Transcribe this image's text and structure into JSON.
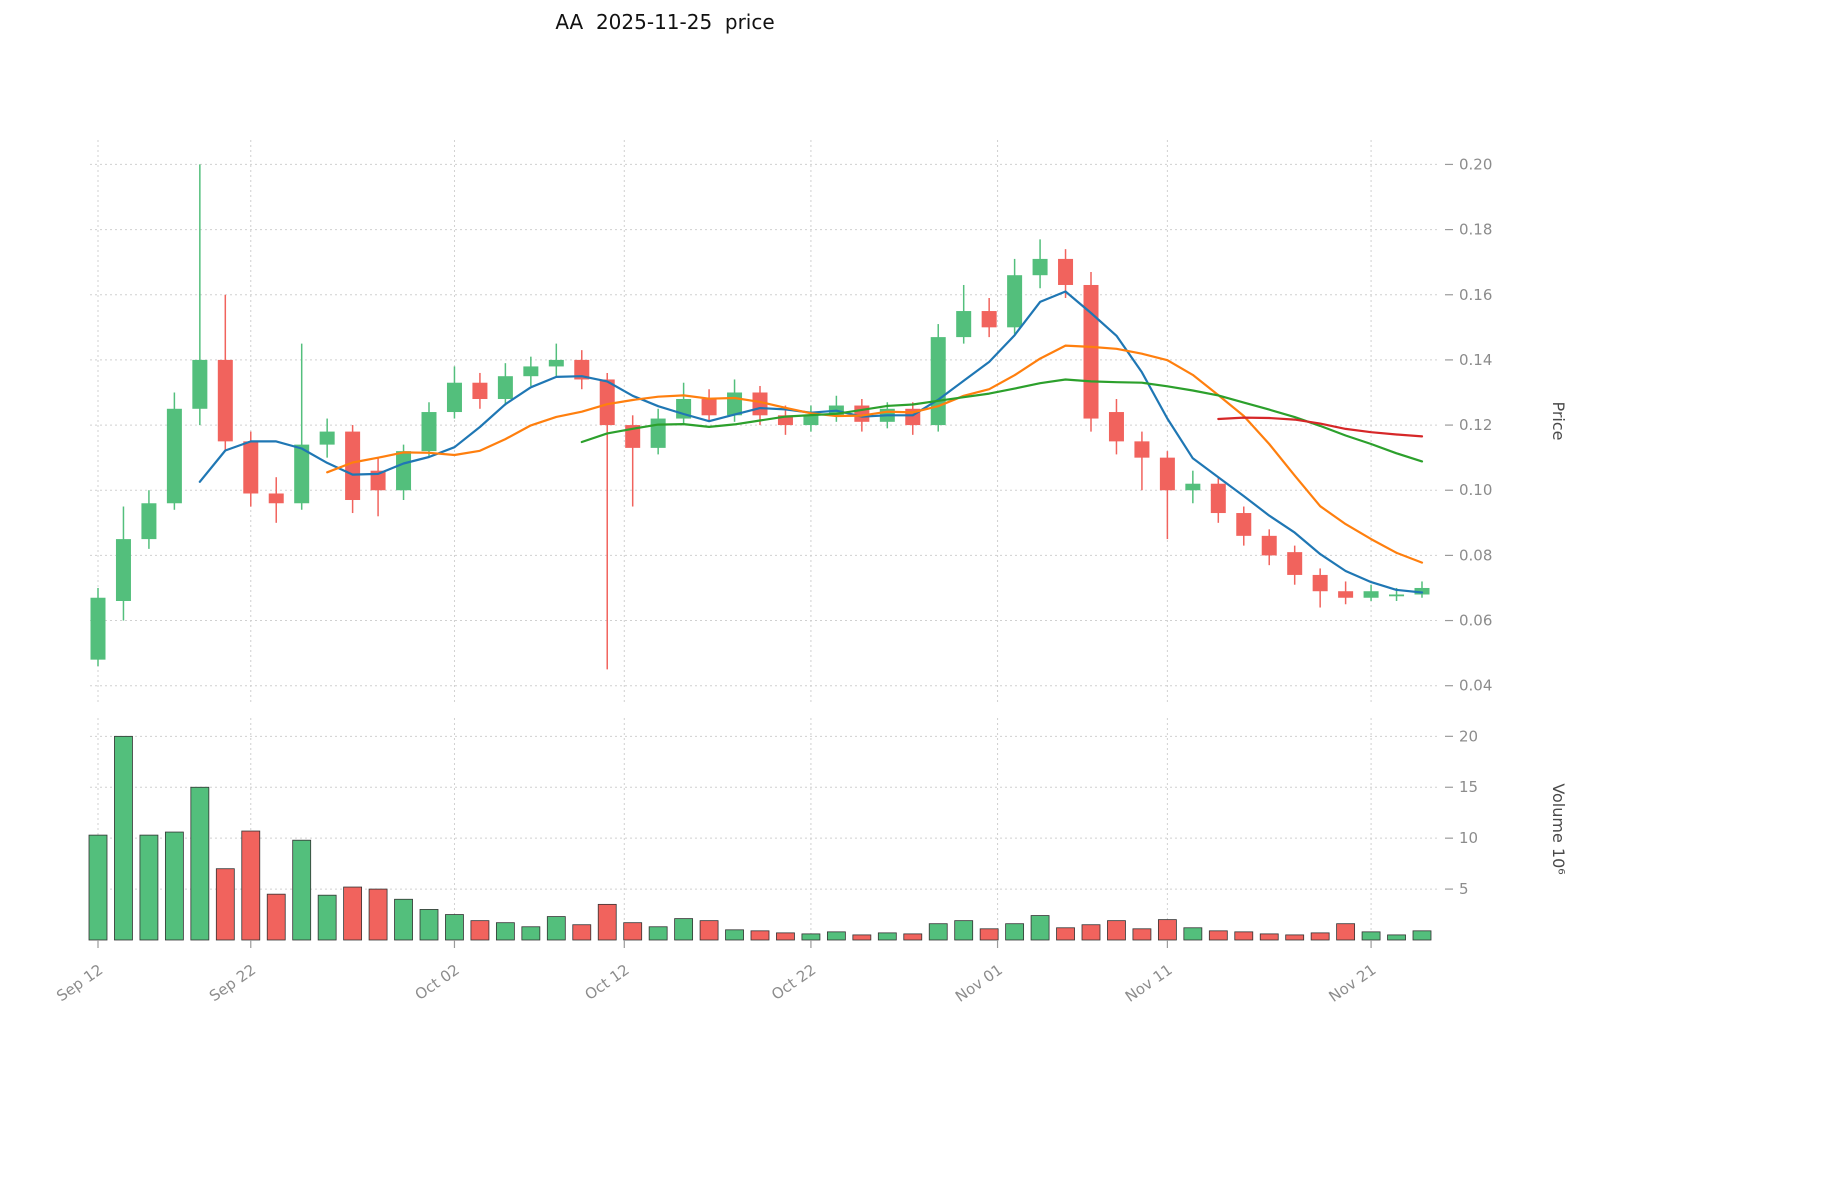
{
  "chart_data": {
    "type": "candlestick",
    "title": "AA  2025-11-25  price",
    "price_axis": {
      "label": "Price",
      "ticks": [
        0.04,
        0.06,
        0.08,
        0.1,
        0.12,
        0.14,
        0.16,
        0.18,
        0.2
      ],
      "range": [
        0.035,
        0.2075
      ]
    },
    "volume_axis": {
      "label": "Volume 10⁶",
      "ticks": [
        5,
        10,
        15,
        20
      ],
      "range": [
        0,
        21.8
      ]
    },
    "x_ticks": [
      {
        "label": "Sep 12",
        "index": 0
      },
      {
        "label": "Sep 22",
        "index": 6
      },
      {
        "label": "Oct 02",
        "index": 14
      },
      {
        "label": "Oct 12",
        "index": 20.67
      },
      {
        "label": "Oct 22",
        "index": 28
      },
      {
        "label": "Nov 01",
        "index": 35.33
      },
      {
        "label": "Nov 11",
        "index": 42
      },
      {
        "label": "Nov 21",
        "index": 50
      }
    ],
    "colors": {
      "up": "#53bf7c",
      "down": "#f1635d",
      "grid": "#d0d0d0",
      "tick_text": "#8c8c8c",
      "volume_edge": "#333333",
      "ma_fast": "#1f77b4",
      "ma_medium": "#ff7f0e",
      "ma_slow": "#2ca02c",
      "ma_long": "#d62728"
    },
    "moving_averages": [
      {
        "name": "ma-5",
        "period": 5,
        "color": "#1f77b4"
      },
      {
        "name": "ma-10",
        "period": 10,
        "color": "#ff7f0e"
      },
      {
        "name": "ma-20",
        "period": 20,
        "color": "#2ca02c"
      },
      {
        "name": "ma-45",
        "period": 45,
        "color": "#d62728"
      }
    ],
    "candles": [
      {
        "date": "Sep 12",
        "open": 0.048,
        "high": 0.07,
        "low": 0.046,
        "close": 0.067,
        "volume": 10.3
      },
      {
        "date": "Sep 15",
        "open": 0.066,
        "high": 0.095,
        "low": 0.06,
        "close": 0.085,
        "volume": 20.0
      },
      {
        "date": "Sep 16",
        "open": 0.085,
        "high": 0.1,
        "low": 0.082,
        "close": 0.096,
        "volume": 10.3
      },
      {
        "date": "Sep 17",
        "open": 0.096,
        "high": 0.13,
        "low": 0.094,
        "close": 0.125,
        "volume": 10.6
      },
      {
        "date": "Sep 18",
        "open": 0.125,
        "high": 0.2,
        "low": 0.12,
        "close": 0.14,
        "volume": 15.0
      },
      {
        "date": "Sep 19",
        "open": 0.14,
        "high": 0.16,
        "low": 0.112,
        "close": 0.115,
        "volume": 7.0
      },
      {
        "date": "Sep 22",
        "open": 0.115,
        "high": 0.118,
        "low": 0.095,
        "close": 0.099,
        "volume": 10.7
      },
      {
        "date": "Sep 23",
        "open": 0.099,
        "high": 0.104,
        "low": 0.09,
        "close": 0.096,
        "volume": 4.5
      },
      {
        "date": "Sep 24",
        "open": 0.096,
        "high": 0.145,
        "low": 0.094,
        "close": 0.114,
        "volume": 9.8
      },
      {
        "date": "Sep 25",
        "open": 0.114,
        "high": 0.122,
        "low": 0.11,
        "close": 0.118,
        "volume": 4.4
      },
      {
        "date": "Sep 26",
        "open": 0.118,
        "high": 0.12,
        "low": 0.093,
        "close": 0.097,
        "volume": 5.2
      },
      {
        "date": "Sep 29",
        "open": 0.106,
        "high": 0.11,
        "low": 0.092,
        "close": 0.1,
        "volume": 5.0
      },
      {
        "date": "Sep 30",
        "open": 0.1,
        "high": 0.114,
        "low": 0.097,
        "close": 0.112,
        "volume": 4.0
      },
      {
        "date": "Oct 01",
        "open": 0.112,
        "high": 0.127,
        "low": 0.11,
        "close": 0.124,
        "volume": 3.0
      },
      {
        "date": "Oct 02",
        "open": 0.124,
        "high": 0.138,
        "low": 0.122,
        "close": 0.133,
        "volume": 2.5
      },
      {
        "date": "Oct 03",
        "open": 0.133,
        "high": 0.136,
        "low": 0.125,
        "close": 0.128,
        "volume": 1.9
      },
      {
        "date": "Oct 06",
        "open": 0.128,
        "high": 0.139,
        "low": 0.126,
        "close": 0.135,
        "volume": 1.7
      },
      {
        "date": "Oct 07",
        "open": 0.135,
        "high": 0.141,
        "low": 0.132,
        "close": 0.138,
        "volume": 1.3
      },
      {
        "date": "Oct 08",
        "open": 0.138,
        "high": 0.145,
        "low": 0.135,
        "close": 0.14,
        "volume": 2.3
      },
      {
        "date": "Oct 09",
        "open": 0.14,
        "high": 0.143,
        "low": 0.131,
        "close": 0.134,
        "volume": 1.5
      },
      {
        "date": "Oct 10",
        "open": 0.134,
        "high": 0.136,
        "low": 0.045,
        "close": 0.12,
        "volume": 3.5
      },
      {
        "date": "Oct 13",
        "open": 0.12,
        "high": 0.123,
        "low": 0.095,
        "close": 0.113,
        "volume": 1.7
      },
      {
        "date": "Oct 14",
        "open": 0.113,
        "high": 0.125,
        "low": 0.111,
        "close": 0.122,
        "volume": 1.3
      },
      {
        "date": "Oct 15",
        "open": 0.122,
        "high": 0.133,
        "low": 0.12,
        "close": 0.128,
        "volume": 2.1
      },
      {
        "date": "Oct 16",
        "open": 0.128,
        "high": 0.131,
        "low": 0.121,
        "close": 0.123,
        "volume": 1.9
      },
      {
        "date": "Oct 17",
        "open": 0.123,
        "high": 0.134,
        "low": 0.121,
        "close": 0.13,
        "volume": 1.0
      },
      {
        "date": "Oct 20",
        "open": 0.13,
        "high": 0.132,
        "low": 0.12,
        "close": 0.123,
        "volume": 0.9
      },
      {
        "date": "Oct 21",
        "open": 0.123,
        "high": 0.126,
        "low": 0.117,
        "close": 0.12,
        "volume": 0.7
      },
      {
        "date": "Oct 22",
        "open": 0.12,
        "high": 0.126,
        "low": 0.118,
        "close": 0.123,
        "volume": 0.6
      },
      {
        "date": "Oct 23",
        "open": 0.123,
        "high": 0.129,
        "low": 0.121,
        "close": 0.126,
        "volume": 0.8
      },
      {
        "date": "Oct 24",
        "open": 0.126,
        "high": 0.128,
        "low": 0.118,
        "close": 0.121,
        "volume": 0.5
      },
      {
        "date": "Oct 27",
        "open": 0.121,
        "high": 0.127,
        "low": 0.119,
        "close": 0.125,
        "volume": 0.7
      },
      {
        "date": "Oct 28",
        "open": 0.125,
        "high": 0.127,
        "low": 0.117,
        "close": 0.12,
        "volume": 0.6
      },
      {
        "date": "Oct 29",
        "open": 0.12,
        "high": 0.151,
        "low": 0.118,
        "close": 0.147,
        "volume": 1.6
      },
      {
        "date": "Oct 30",
        "open": 0.147,
        "high": 0.163,
        "low": 0.145,
        "close": 0.155,
        "volume": 1.9
      },
      {
        "date": "Oct 31",
        "open": 0.155,
        "high": 0.159,
        "low": 0.147,
        "close": 0.15,
        "volume": 1.1
      },
      {
        "date": "Nov 03",
        "open": 0.15,
        "high": 0.171,
        "low": 0.148,
        "close": 0.166,
        "volume": 1.6
      },
      {
        "date": "Nov 04",
        "open": 0.166,
        "high": 0.177,
        "low": 0.162,
        "close": 0.171,
        "volume": 2.4
      },
      {
        "date": "Nov 05",
        "open": 0.171,
        "high": 0.174,
        "low": 0.159,
        "close": 0.163,
        "volume": 1.2
      },
      {
        "date": "Nov 06",
        "open": 0.163,
        "high": 0.167,
        "low": 0.118,
        "close": 0.122,
        "volume": 1.5
      },
      {
        "date": "Nov 07",
        "open": 0.124,
        "high": 0.128,
        "low": 0.111,
        "close": 0.115,
        "volume": 1.9
      },
      {
        "date": "Nov 10",
        "open": 0.115,
        "high": 0.118,
        "low": 0.1,
        "close": 0.11,
        "volume": 1.1
      },
      {
        "date": "Nov 11",
        "open": 0.11,
        "high": 0.112,
        "low": 0.085,
        "close": 0.1,
        "volume": 2.0
      },
      {
        "date": "Nov 12",
        "open": 0.1,
        "high": 0.106,
        "low": 0.096,
        "close": 0.102,
        "volume": 1.2
      },
      {
        "date": "Nov 13",
        "open": 0.102,
        "high": 0.104,
        "low": 0.09,
        "close": 0.093,
        "volume": 0.9
      },
      {
        "date": "Nov 14",
        "open": 0.093,
        "high": 0.095,
        "low": 0.083,
        "close": 0.086,
        "volume": 0.8
      },
      {
        "date": "Nov 17",
        "open": 0.086,
        "high": 0.088,
        "low": 0.077,
        "close": 0.08,
        "volume": 0.6
      },
      {
        "date": "Nov 18",
        "open": 0.081,
        "high": 0.083,
        "low": 0.071,
        "close": 0.074,
        "volume": 0.5
      },
      {
        "date": "Nov 19",
        "open": 0.074,
        "high": 0.076,
        "low": 0.064,
        "close": 0.069,
        "volume": 0.7
      },
      {
        "date": "Nov 20",
        "open": 0.069,
        "high": 0.072,
        "low": 0.065,
        "close": 0.067,
        "volume": 1.6
      },
      {
        "date": "Nov 21",
        "open": 0.067,
        "high": 0.071,
        "low": 0.066,
        "close": 0.069,
        "volume": 0.8
      },
      {
        "date": "Nov 24",
        "open": 0.068,
        "high": 0.07,
        "low": 0.066,
        "close": 0.068,
        "volume": 0.5
      },
      {
        "date": "Nov 25",
        "open": 0.068,
        "high": 0.072,
        "low": 0.067,
        "close": 0.07,
        "volume": 0.9
      }
    ]
  }
}
